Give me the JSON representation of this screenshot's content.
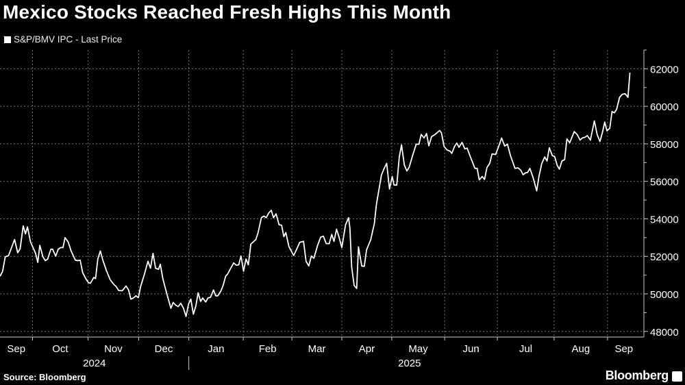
{
  "chart_data": {
    "type": "line",
    "title": "Mexico Stocks Reached Fresh Highs This Month",
    "legend": "S&P/BMV IPC - Last Price",
    "legend_placement": "top-left",
    "xlabel": "",
    "ylabel": "",
    "x_unit": "trading days since start of window (Sep 2024)",
    "xlim": [
      0,
      250
    ],
    "ylim": [
      47700,
      63000
    ],
    "y_ticks": [
      48000,
      50000,
      52000,
      54000,
      56000,
      58000,
      60000,
      62000
    ],
    "y_tick_labels": [
      "48000",
      "50000",
      "52000",
      "54000",
      "56000",
      "58000",
      "60000",
      "62000"
    ],
    "grid": true,
    "line_color": "#ffffff",
    "month_boundaries": [
      12.9,
      34.9,
      55.0,
      74.9,
      96.5,
      115.8,
      135.6,
      155.4,
      176.4,
      197.3,
      219.8,
      241.0
    ],
    "month_labels": [
      "Sep",
      "Oct",
      "Nov",
      "Dec",
      "Jan",
      "Feb",
      "Mar",
      "Apr",
      "May",
      "Jun",
      "Jul",
      "Aug",
      "Sep"
    ],
    "years": [
      {
        "label": "2024",
        "start": 0,
        "end": 74.9
      },
      {
        "label": "2025",
        "start": 74.9,
        "end": 250
      }
    ],
    "series": [
      {
        "name": "S&P/BMV IPC - Last Price",
        "points": [
          [
            0,
            50940
          ],
          [
            1.0,
            51190
          ],
          [
            2.1,
            51980
          ],
          [
            3.4,
            52040
          ],
          [
            5.8,
            52900
          ],
          [
            7.0,
            52190
          ],
          [
            8.0,
            52410
          ],
          [
            9.2,
            53630
          ],
          [
            10.1,
            53200
          ],
          [
            10.9,
            53570
          ],
          [
            12.1,
            52780
          ],
          [
            14.1,
            52160
          ],
          [
            15.0,
            51680
          ],
          [
            15.8,
            52590
          ],
          [
            17.0,
            51980
          ],
          [
            18.0,
            51770
          ],
          [
            18.9,
            51860
          ],
          [
            20.2,
            52380
          ],
          [
            20.9,
            52380
          ],
          [
            22.1,
            52010
          ],
          [
            23.1,
            52380
          ],
          [
            24.1,
            52470
          ],
          [
            25.0,
            52470
          ],
          [
            25.8,
            53000
          ],
          [
            27.0,
            52780
          ],
          [
            28.2,
            52290
          ],
          [
            29.9,
            51800
          ],
          [
            30.9,
            51770
          ],
          [
            31.8,
            51800
          ],
          [
            32.8,
            51130
          ],
          [
            34.0,
            50820
          ],
          [
            35.1,
            50600
          ],
          [
            35.9,
            50570
          ],
          [
            37.2,
            50880
          ],
          [
            37.9,
            50820
          ],
          [
            38.8,
            51860
          ],
          [
            39.8,
            52290
          ],
          [
            40.8,
            51800
          ],
          [
            42.2,
            51250
          ],
          [
            43.7,
            50760
          ],
          [
            45.1,
            50510
          ],
          [
            46.1,
            50390
          ],
          [
            47.1,
            50180
          ],
          [
            48.5,
            50170
          ],
          [
            50.0,
            50420
          ],
          [
            51.0,
            50210
          ],
          [
            51.9,
            49720
          ],
          [
            52.9,
            49780
          ],
          [
            53.9,
            49900
          ],
          [
            54.9,
            49800
          ],
          [
            55.8,
            50390
          ],
          [
            57.3,
            51060
          ],
          [
            58.7,
            51740
          ],
          [
            59.7,
            51370
          ],
          [
            60.7,
            52160
          ],
          [
            61.7,
            51370
          ],
          [
            62.9,
            51310
          ],
          [
            63.6,
            51580
          ],
          [
            64.6,
            50820
          ],
          [
            66.0,
            50090
          ],
          [
            67.8,
            49230
          ],
          [
            68.7,
            49540
          ],
          [
            69.9,
            49380
          ],
          [
            70.7,
            49320
          ],
          [
            71.7,
            49500
          ],
          [
            72.8,
            49230
          ],
          [
            73.8,
            48800
          ],
          [
            74.8,
            49470
          ],
          [
            75.7,
            49720
          ],
          [
            76.7,
            48920
          ],
          [
            77.7,
            49350
          ],
          [
            78.6,
            50060
          ],
          [
            79.6,
            49600
          ],
          [
            80.4,
            49780
          ],
          [
            81.6,
            49570
          ],
          [
            82.5,
            49780
          ],
          [
            83.5,
            49820
          ],
          [
            84.7,
            50210
          ],
          [
            85.6,
            49900
          ],
          [
            86.4,
            49900
          ],
          [
            87.6,
            50150
          ],
          [
            88.5,
            50450
          ],
          [
            89.5,
            50940
          ],
          [
            90.3,
            51060
          ],
          [
            91.3,
            51310
          ],
          [
            92.7,
            51650
          ],
          [
            93.7,
            51530
          ],
          [
            94.7,
            51550
          ],
          [
            95.6,
            52020
          ],
          [
            96.6,
            51210
          ],
          [
            97.6,
            51860
          ],
          [
            98.5,
            51550
          ],
          [
            99.5,
            52650
          ],
          [
            101.5,
            52900
          ],
          [
            102.4,
            53270
          ],
          [
            103.7,
            54060
          ],
          [
            104.7,
            54150
          ],
          [
            105.6,
            54060
          ],
          [
            106.6,
            54310
          ],
          [
            107.6,
            54460
          ],
          [
            108.5,
            54060
          ],
          [
            109.5,
            54270
          ],
          [
            110.7,
            53690
          ],
          [
            111.7,
            53660
          ],
          [
            112.6,
            53050
          ],
          [
            113.4,
            53270
          ],
          [
            114.6,
            52530
          ],
          [
            116.5,
            52040
          ],
          [
            118.0,
            52470
          ],
          [
            118.9,
            52750
          ],
          [
            120.4,
            52800
          ],
          [
            121.4,
            51740
          ],
          [
            122.5,
            51490
          ],
          [
            123.5,
            52020
          ],
          [
            124.5,
            51900
          ],
          [
            126.0,
            52590
          ],
          [
            127.2,
            53020
          ],
          [
            128.3,
            53080
          ],
          [
            129.4,
            52680
          ],
          [
            130.6,
            52680
          ],
          [
            131.6,
            53170
          ],
          [
            132.5,
            52800
          ],
          [
            133.5,
            53450
          ],
          [
            134.5,
            53020
          ],
          [
            135.6,
            52470
          ],
          [
            137.1,
            53690
          ],
          [
            138.3,
            54060
          ],
          [
            138.8,
            53510
          ],
          [
            139.5,
            51430
          ],
          [
            140.5,
            50450
          ],
          [
            141.5,
            50290
          ],
          [
            142.2,
            52510
          ],
          [
            143.5,
            51490
          ],
          [
            144.5,
            51470
          ],
          [
            145.4,
            52350
          ],
          [
            147.1,
            52900
          ],
          [
            148.5,
            53750
          ],
          [
            149.3,
            54740
          ],
          [
            151.3,
            56330
          ],
          [
            152.2,
            56630
          ],
          [
            153.4,
            56960
          ],
          [
            154.5,
            55590
          ],
          [
            155.6,
            56260
          ],
          [
            156.3,
            55800
          ],
          [
            157.4,
            55800
          ],
          [
            158.4,
            57300
          ],
          [
            159.3,
            57940
          ],
          [
            160.4,
            56870
          ],
          [
            161.4,
            56550
          ],
          [
            162.3,
            56750
          ],
          [
            163.5,
            57300
          ],
          [
            165.1,
            57980
          ],
          [
            166.2,
            57980
          ],
          [
            167.1,
            58500
          ],
          [
            168.2,
            58310
          ],
          [
            169.2,
            58550
          ],
          [
            170.1,
            57890
          ],
          [
            171.2,
            58380
          ],
          [
            172.6,
            58500
          ],
          [
            174.4,
            58710
          ],
          [
            175.1,
            58590
          ],
          [
            176.2,
            57850
          ],
          [
            177.4,
            57670
          ],
          [
            178.5,
            57610
          ],
          [
            179.2,
            57490
          ],
          [
            180.3,
            57850
          ],
          [
            181.2,
            58040
          ],
          [
            182.1,
            57820
          ],
          [
            183.3,
            58070
          ],
          [
            184.4,
            57730
          ],
          [
            185.3,
            57770
          ],
          [
            186.4,
            57370
          ],
          [
            187.5,
            57000
          ],
          [
            188.4,
            56690
          ],
          [
            189.3,
            56690
          ],
          [
            190.1,
            56080
          ],
          [
            191.3,
            56260
          ],
          [
            192.2,
            56100
          ],
          [
            193.2,
            56750
          ],
          [
            194.3,
            56960
          ],
          [
            195.2,
            57460
          ],
          [
            196.6,
            57430
          ],
          [
            197.9,
            57890
          ],
          [
            199.0,
            58310
          ],
          [
            200.2,
            57880
          ],
          [
            201.3,
            57980
          ],
          [
            202.5,
            57370
          ],
          [
            204.3,
            56690
          ],
          [
            205.5,
            56720
          ],
          [
            206.6,
            56590
          ],
          [
            207.5,
            56350
          ],
          [
            208.4,
            56450
          ],
          [
            209.3,
            56470
          ],
          [
            210.2,
            56690
          ],
          [
            211.4,
            56230
          ],
          [
            212.9,
            55490
          ],
          [
            213.8,
            56260
          ],
          [
            214.9,
            56940
          ],
          [
            216.1,
            57300
          ],
          [
            217.0,
            57080
          ],
          [
            217.9,
            57790
          ],
          [
            219.1,
            57370
          ],
          [
            220.0,
            57330
          ],
          [
            221.0,
            56870
          ],
          [
            221.9,
            56650
          ],
          [
            222.9,
            57080
          ],
          [
            224.0,
            57160
          ],
          [
            224.9,
            58260
          ],
          [
            226.0,
            58060
          ],
          [
            227.8,
            58650
          ],
          [
            229.0,
            58490
          ],
          [
            230.1,
            58200
          ],
          [
            231.0,
            58310
          ],
          [
            232.1,
            58350
          ],
          [
            233.0,
            58440
          ],
          [
            234.2,
            58200
          ],
          [
            235.8,
            59220
          ],
          [
            236.9,
            58490
          ],
          [
            238.0,
            58120
          ],
          [
            239.0,
            58610
          ],
          [
            239.9,
            59160
          ],
          [
            240.8,
            58690
          ],
          [
            241.9,
            58830
          ],
          [
            242.8,
            59720
          ],
          [
            243.7,
            59650
          ],
          [
            244.6,
            59830
          ],
          [
            245.8,
            60480
          ],
          [
            246.9,
            60640
          ],
          [
            248.0,
            60670
          ],
          [
            249.1,
            60480
          ],
          [
            249.9,
            61790
          ]
        ]
      }
    ]
  },
  "footer": {
    "source": "Source: Bloomberg",
    "brand": "Bloomberg"
  }
}
